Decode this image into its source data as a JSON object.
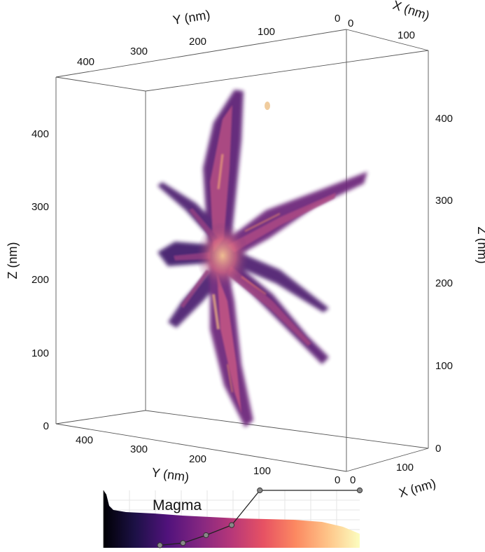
{
  "box": {
    "y_axis_top": {
      "title": "Y (nm)",
      "ticks": [
        "400",
        "300",
        "200",
        "100",
        "0"
      ]
    },
    "x_axis_top": {
      "title": "X (nm)",
      "ticks": [
        "0",
        "100"
      ]
    },
    "z_axis_left": {
      "title": "Z (nm)",
      "ticks": [
        "400",
        "300",
        "200",
        "100",
        "0"
      ]
    },
    "z_axis_right": {
      "title": "Z (nm)",
      "ticks": [
        "400",
        "300",
        "200",
        "100",
        "0"
      ]
    },
    "y_axis_bottom": {
      "title": "Y (nm)",
      "ticks": [
        "400",
        "300",
        "200",
        "100",
        "0"
      ]
    },
    "x_axis_bottom": {
      "title": "X (nm)",
      "ticks": [
        "0",
        "100"
      ]
    }
  },
  "colormap": {
    "name": "Magma",
    "stops": [
      "#000004",
      "#1d1147",
      "#51127c",
      "#832681",
      "#b73779",
      "#e75263",
      "#fc8961",
      "#fec488",
      "#fcfdbf"
    ],
    "transfer_points": [
      [
        0.22,
        0.02
      ],
      [
        0.31,
        0.06
      ],
      [
        0.4,
        0.2
      ],
      [
        0.5,
        0.38
      ],
      [
        0.61,
        1.0
      ],
      [
        1.0,
        1.0
      ]
    ]
  },
  "volume": {
    "description_colors": [
      "#3b1763",
      "#7a2a7a",
      "#b0407a",
      "#e0745a",
      "#f5c08a"
    ]
  }
}
